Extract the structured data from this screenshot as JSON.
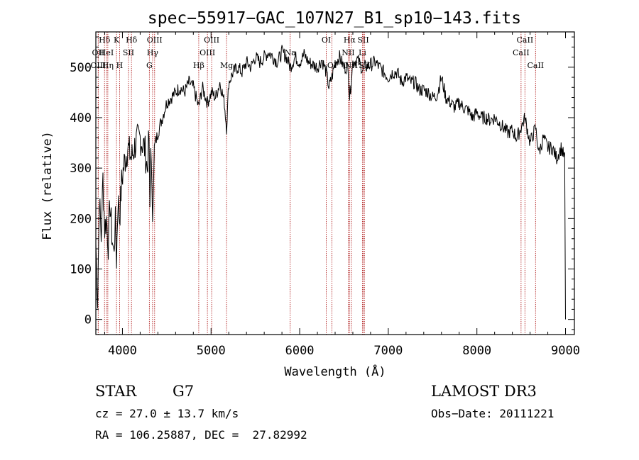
{
  "chart_data": {
    "type": "line",
    "title": "spec−55917−GAC_107N27_B1_sp10−143.fits",
    "xlabel": "Wavelength (Å)",
    "ylabel": "Flux (relative)",
    "xlim": [
      3700,
      9100
    ],
    "ylim": [
      -30,
      570
    ],
    "x_ticks": [
      4000,
      5000,
      6000,
      7000,
      8000,
      9000
    ],
    "y_ticks": [
      0,
      100,
      200,
      300,
      400,
      500
    ],
    "series": [
      {
        "x": [
          3700,
          3720,
          3740,
          3760,
          3780,
          3800,
          3820,
          3840,
          3860,
          3880,
          3900,
          3920,
          3933,
          3950,
          3968,
          3990,
          4020,
          4060,
          4102,
          4150,
          4200,
          4250,
          4280,
          4300,
          4310,
          4320,
          4340,
          4360,
          4400,
          4450,
          4500,
          4550,
          4600,
          4650,
          4700,
          4750,
          4800,
          4861,
          4900,
          4959,
          5007,
          5050,
          5100,
          5150,
          5175,
          5200,
          5250,
          5300,
          5350,
          5400,
          5450,
          5500,
          5550,
          5600,
          5650,
          5700,
          5750,
          5800,
          5850,
          5893,
          5950,
          6000,
          6050,
          6100,
          6150,
          6200,
          6250,
          6300,
          6330,
          6364,
          6400,
          6450,
          6500,
          6548,
          6563,
          6580,
          6600,
          6650,
          6700,
          6717,
          6731,
          6800,
          6850,
          6900,
          6950,
          7000,
          7050,
          7100,
          7150,
          7200,
          7250,
          7300,
          7350,
          7400,
          7450,
          7500,
          7550,
          7600,
          7650,
          7700,
          7750,
          7800,
          7850,
          7900,
          7950,
          8000,
          8050,
          8100,
          8150,
          8200,
          8250,
          8300,
          8350,
          8400,
          8450,
          8498,
          8542,
          8600,
          8662,
          8700,
          8750,
          8800,
          8850,
          8900,
          8950,
          8990,
          9000
        ],
        "values": [
          150,
          40,
          240,
          160,
          280,
          180,
          200,
          150,
          230,
          170,
          130,
          190,
          120,
          240,
          200,
          270,
          310,
          340,
          320,
          350,
          360,
          340,
          300,
          360,
          220,
          350,
          200,
          340,
          370,
          400,
          430,
          440,
          450,
          460,
          450,
          470,
          460,
          420,
          460,
          430,
          450,
          440,
          470,
          430,
          380,
          470,
          490,
          500,
          490,
          510,
          500,
          520,
          510,
          520,
          530,
          520,
          510,
          530,
          520,
          500,
          520,
          510,
          525,
          510,
          505,
          500,
          515,
          490,
          460,
          480,
          510,
          520,
          500,
          500,
          440,
          470,
          510,
          515,
          500,
          490,
          500,
          505,
          510,
          500,
          490,
          480,
          490,
          490,
          470,
          480,
          470,
          470,
          455,
          455,
          450,
          440,
          445,
          480,
          440,
          430,
          420,
          430,
          420,
          415,
          400,
          410,
          400,
          400,
          395,
          400,
          390,
          380,
          370,
          375,
          360,
          380,
          400,
          350,
          380,
          330,
          360,
          340,
          340,
          320,
          340,
          320,
          0
        ]
      }
    ],
    "spectral_lines": [
      {
        "name": "Hδ",
        "x": 3798,
        "row": 0
      },
      {
        "name": "OII",
        "x": 3727,
        "row": 1
      },
      {
        "name": "OIII",
        "x": 3727,
        "row": 2
      },
      {
        "name": "HeI",
        "x": 3820,
        "row": 1
      },
      {
        "name": "Hη",
        "x": 3835,
        "row": 2
      },
      {
        "name": "K",
        "x": 3933,
        "row": 0
      },
      {
        "name": "SII",
        "x": 4068,
        "row": 1
      },
      {
        "name": "H",
        "x": 3968,
        "row": 2
      },
      {
        "name": "Hδ",
        "x": 4102,
        "row": 0
      },
      {
        "name": "OIII",
        "x": 4363,
        "row": 0
      },
      {
        "name": "Hγ",
        "x": 4340,
        "row": 1
      },
      {
        "name": "G",
        "x": 4304,
        "row": 2
      },
      {
        "name": "Hβ",
        "x": 4861,
        "row": 2
      },
      {
        "name": "OIII",
        "x": 5007,
        "row": 0
      },
      {
        "name": "OIII",
        "x": 4959,
        "row": 1
      },
      {
        "name": "Mg",
        "x": 5175,
        "row": 2
      },
      {
        "name": "Na",
        "x": 5893,
        "row": 1
      },
      {
        "name": "OI",
        "x": 6300,
        "row": 0
      },
      {
        "name": "OI",
        "x": 6364,
        "row": 2
      },
      {
        "name": "Hα",
        "x": 6563,
        "row": 0
      },
      {
        "name": "SII",
        "x": 6717,
        "row": 0
      },
      {
        "name": "NII",
        "x": 6548,
        "row": 1
      },
      {
        "name": "Li",
        "x": 6708,
        "row": 1
      },
      {
        "name": "NII",
        "x": 6583,
        "row": 2
      },
      {
        "name": "SII",
        "x": 6731,
        "row": 2
      },
      {
        "name": "CaII",
        "x": 8542,
        "row": 0
      },
      {
        "name": "CaII",
        "x": 8498,
        "row": 1
      },
      {
        "name": "CaII",
        "x": 8662,
        "row": 2
      }
    ],
    "line_color": "#b22222",
    "grid": false
  },
  "info": {
    "class": "STAR",
    "subclass": "G7",
    "survey": "LAMOST DR3",
    "cz": "cz = 27.0 ± 13.7 km/s",
    "obs_date": "Obs−Date: 20111221",
    "radec": "RA = 106.25887, DEC =  27.82992"
  }
}
